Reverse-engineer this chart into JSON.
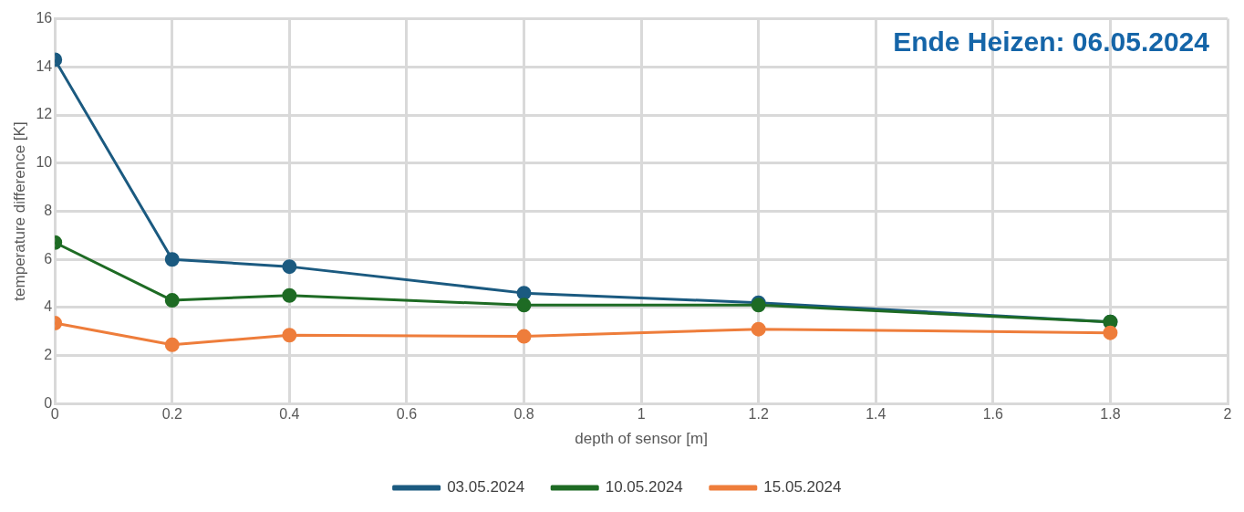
{
  "chart_data": {
    "type": "line",
    "xlabel": "depth of sensor [m]",
    "ylabel": "temperature difference [K]",
    "annotations": [
      "Ende Heizen: 06.05.2024"
    ],
    "x": [
      0,
      0.2,
      0.4,
      0.8,
      1.2,
      1.8
    ],
    "series": [
      {
        "name": "03.05.2024",
        "color": "#1b5a80",
        "values": [
          14.3,
          6.0,
          5.7,
          4.6,
          4.2,
          3.4
        ]
      },
      {
        "name": "10.05.2024",
        "color": "#1e6b24",
        "values": [
          6.7,
          4.3,
          4.5,
          4.1,
          4.1,
          3.4
        ]
      },
      {
        "name": "15.05.2024",
        "color": "#ee7d3b",
        "values": [
          3.35,
          2.45,
          2.85,
          2.8,
          3.1,
          2.95
        ]
      }
    ],
    "xlim": [
      0,
      2
    ],
    "xticks": [
      0,
      0.2,
      0.4,
      0.6,
      0.8,
      1,
      1.2,
      1.4,
      1.6,
      1.8,
      2
    ],
    "ylim": [
      0,
      16
    ],
    "yticks": [
      0,
      2,
      4,
      6,
      8,
      10,
      12,
      14,
      16
    ],
    "grid": true,
    "legend": "bottom",
    "marker": "circle",
    "line_style": "solid"
  }
}
